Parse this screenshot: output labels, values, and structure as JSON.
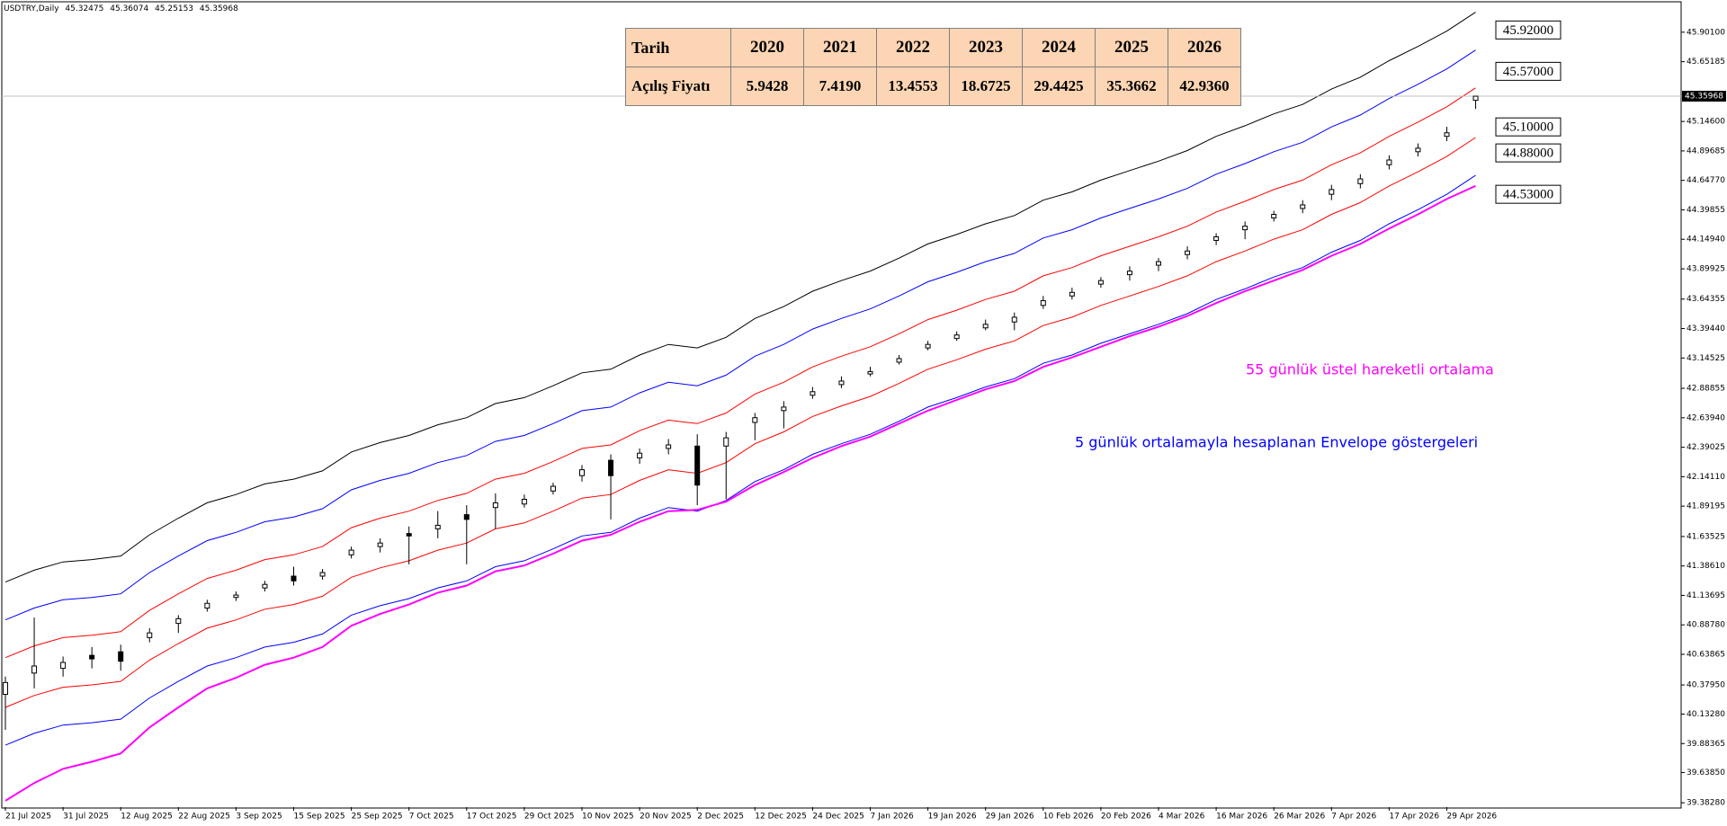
{
  "chart_data": {
    "type": "candlestick",
    "symbol": "USDTRY,Daily",
    "categories": [
      "21 Jul 2025",
      null,
      "31 Jul 2025",
      null,
      "12 Aug 2025",
      null,
      "22 Aug 2025",
      null,
      "3 Sep 2025",
      null,
      "15 Sep 2025",
      null,
      "25 Sep 2025",
      null,
      "7 Oct 2025",
      null,
      "17 Oct 2025",
      null,
      "29 Oct 2025",
      null,
      "10 Nov 2025",
      null,
      "20 Nov 2025",
      null,
      "2 Dec 2025",
      null,
      "12 Dec 2025",
      null,
      "24 Dec 2025",
      null,
      "7 Jan 2026",
      null,
      "19 Jan 2026",
      null,
      "29 Jan 2026",
      null,
      "10 Feb 2026",
      null,
      "20 Feb 2026",
      null,
      "4 Mar 2026",
      null,
      "16 Mar 2026",
      null,
      "26 Mar 2026",
      null,
      "7 Apr 2026",
      null,
      "17 Apr 2026",
      null,
      "29 Apr 2026",
      null
    ],
    "candles": [
      [
        40.3,
        40.45,
        40.0,
        40.4
      ],
      [
        40.48,
        40.95,
        40.35,
        40.54
      ],
      [
        40.52,
        40.62,
        40.45,
        40.57
      ],
      [
        40.63,
        40.7,
        40.52,
        40.6
      ],
      [
        40.66,
        40.72,
        40.5,
        40.58
      ],
      [
        40.78,
        40.86,
        40.74,
        40.82
      ],
      [
        40.9,
        40.97,
        40.82,
        40.94
      ],
      [
        41.03,
        41.1,
        41.0,
        41.07
      ],
      [
        41.12,
        41.17,
        41.09,
        41.14
      ],
      [
        41.2,
        41.26,
        41.17,
        41.23
      ],
      [
        41.3,
        41.38,
        41.22,
        41.26
      ],
      [
        41.3,
        41.36,
        41.27,
        41.33
      ],
      [
        41.48,
        41.55,
        41.45,
        41.52
      ],
      [
        41.55,
        41.62,
        41.5,
        41.58
      ],
      [
        41.66,
        41.72,
        41.4,
        41.64
      ],
      [
        41.7,
        41.85,
        41.62,
        41.73
      ],
      [
        41.82,
        41.9,
        41.4,
        41.78
      ],
      [
        41.88,
        42.0,
        41.7,
        41.92
      ],
      [
        41.91,
        41.99,
        41.88,
        41.95
      ],
      [
        42.02,
        42.09,
        41.99,
        42.06
      ],
      [
        42.15,
        42.24,
        42.1,
        42.2
      ],
      [
        42.28,
        42.33,
        41.78,
        42.15
      ],
      [
        42.3,
        42.38,
        42.25,
        42.34
      ],
      [
        42.38,
        42.46,
        42.33,
        42.41
      ],
      [
        42.4,
        42.5,
        41.9,
        42.07
      ],
      [
        42.4,
        42.52,
        41.95,
        42.47
      ],
      [
        42.6,
        42.68,
        42.45,
        42.64
      ],
      [
        42.7,
        42.78,
        42.55,
        42.73
      ],
      [
        42.83,
        42.9,
        42.8,
        42.86
      ],
      [
        42.92,
        42.99,
        42.89,
        42.95
      ],
      [
        43.01,
        43.07,
        42.99,
        43.03
      ],
      [
        43.11,
        43.17,
        43.09,
        43.14
      ],
      [
        43.23,
        43.29,
        43.21,
        43.26
      ],
      [
        43.31,
        43.37,
        43.29,
        43.34
      ],
      [
        43.4,
        43.47,
        43.38,
        43.43
      ],
      [
        43.45,
        43.53,
        43.38,
        43.49
      ],
      [
        43.59,
        43.67,
        43.56,
        43.63
      ],
      [
        43.67,
        43.74,
        43.64,
        43.7
      ],
      [
        43.77,
        43.83,
        43.74,
        43.8
      ],
      [
        43.85,
        43.92,
        43.8,
        43.88
      ],
      [
        43.93,
        43.99,
        43.88,
        43.96
      ],
      [
        44.02,
        44.09,
        43.98,
        44.05
      ],
      [
        44.14,
        44.2,
        44.1,
        44.17
      ],
      [
        44.23,
        44.3,
        44.15,
        44.26
      ],
      [
        44.33,
        44.39,
        44.3,
        44.36
      ],
      [
        44.41,
        44.48,
        44.37,
        44.44
      ],
      [
        44.53,
        44.61,
        44.48,
        44.57
      ],
      [
        44.62,
        44.7,
        44.58,
        44.66
      ],
      [
        44.78,
        44.86,
        44.74,
        44.82
      ],
      [
        44.89,
        44.96,
        44.85,
        44.92
      ],
      [
        45.02,
        45.1,
        44.98,
        45.05
      ],
      [
        45.32475,
        45.36074,
        45.25153,
        45.35968
      ]
    ],
    "series": [
      {
        "color": "#000000",
        "values": [
          41.25,
          41.35,
          41.42,
          41.44,
          41.47,
          41.65,
          41.79,
          41.92,
          41.99,
          42.08,
          42.12,
          42.19,
          42.35,
          42.43,
          42.49,
          42.58,
          42.64,
          42.76,
          42.81,
          42.91,
          43.02,
          43.05,
          43.17,
          43.26,
          43.23,
          43.32,
          43.48,
          43.58,
          43.71,
          43.8,
          43.88,
          43.99,
          44.11,
          44.19,
          44.28,
          44.35,
          44.48,
          44.55,
          44.65,
          44.73,
          44.81,
          44.9,
          45.02,
          45.11,
          45.21,
          45.29,
          45.42,
          45.52,
          45.66,
          45.78,
          45.91,
          46.07
        ]
      },
      {
        "color": "#0000ff",
        "values": [
          40.93,
          41.03,
          41.1,
          41.12,
          41.15,
          41.33,
          41.47,
          41.6,
          41.67,
          41.76,
          41.8,
          41.87,
          42.03,
          42.11,
          42.17,
          42.26,
          42.32,
          42.44,
          42.49,
          42.59,
          42.7,
          42.73,
          42.85,
          42.94,
          42.91,
          43.0,
          43.16,
          43.26,
          43.39,
          43.48,
          43.56,
          43.67,
          43.79,
          43.87,
          43.96,
          44.03,
          44.16,
          44.23,
          44.33,
          44.41,
          44.49,
          44.58,
          44.7,
          44.79,
          44.89,
          44.97,
          45.1,
          45.2,
          45.34,
          45.46,
          45.59,
          45.75
        ]
      },
      {
        "color": "#ff0000",
        "values": [
          40.61,
          40.71,
          40.78,
          40.8,
          40.83,
          41.01,
          41.15,
          41.28,
          41.35,
          41.44,
          41.48,
          41.55,
          41.71,
          41.79,
          41.85,
          41.94,
          42.0,
          42.12,
          42.17,
          42.27,
          42.38,
          42.41,
          42.53,
          42.62,
          42.59,
          42.68,
          42.84,
          42.94,
          43.07,
          43.16,
          43.24,
          43.35,
          43.47,
          43.55,
          43.64,
          43.71,
          43.84,
          43.91,
          44.01,
          44.09,
          44.17,
          44.26,
          44.38,
          44.47,
          44.57,
          44.65,
          44.78,
          44.88,
          45.02,
          45.14,
          45.27,
          45.43
        ]
      },
      {
        "color": "#ff0000",
        "values": [
          40.19,
          40.29,
          40.36,
          40.38,
          40.41,
          40.59,
          40.73,
          40.86,
          40.93,
          41.02,
          41.06,
          41.13,
          41.29,
          41.37,
          41.43,
          41.52,
          41.58,
          41.7,
          41.75,
          41.85,
          41.96,
          41.99,
          42.11,
          42.2,
          42.17,
          42.26,
          42.42,
          42.52,
          42.65,
          42.74,
          42.82,
          42.93,
          43.05,
          43.13,
          43.22,
          43.29,
          43.42,
          43.49,
          43.59,
          43.67,
          43.75,
          43.84,
          43.96,
          44.05,
          44.15,
          44.23,
          44.36,
          44.46,
          44.6,
          44.72,
          44.85,
          45.01
        ]
      },
      {
        "color": "#0000ff",
        "values": [
          39.87,
          39.97,
          40.04,
          40.06,
          40.09,
          40.27,
          40.41,
          40.54,
          40.61,
          40.7,
          40.74,
          40.81,
          40.97,
          41.05,
          41.11,
          41.2,
          41.26,
          41.38,
          41.43,
          41.53,
          41.64,
          41.67,
          41.79,
          41.88,
          41.85,
          41.94,
          42.1,
          42.2,
          42.33,
          42.42,
          42.5,
          42.61,
          42.73,
          42.81,
          42.9,
          42.97,
          43.1,
          43.17,
          43.27,
          43.35,
          43.43,
          43.52,
          43.64,
          43.73,
          43.83,
          43.91,
          44.04,
          44.14,
          44.28,
          44.4,
          44.53,
          44.69
        ]
      },
      {
        "color": "#ff00ff",
        "width": 2,
        "values": [
          39.4,
          39.55,
          39.67,
          39.73,
          39.8,
          40.02,
          40.19,
          40.35,
          40.44,
          40.55,
          40.61,
          40.7,
          40.88,
          40.98,
          41.06,
          41.16,
          41.22,
          41.34,
          41.39,
          41.49,
          41.6,
          41.65,
          41.76,
          41.85,
          41.86,
          41.93,
          42.07,
          42.18,
          42.3,
          42.4,
          42.48,
          42.59,
          42.7,
          42.79,
          42.88,
          42.95,
          43.07,
          43.15,
          43.24,
          43.33,
          43.41,
          43.5,
          43.61,
          43.71,
          43.8,
          43.89,
          44.01,
          44.11,
          44.24,
          44.36,
          44.49,
          44.6
        ]
      }
    ],
    "ylim": [
      39.346,
      46.143
    ],
    "yticks": [
      {
        "value": 45.901,
        "label": "45.90100"
      },
      {
        "value": 45.65185,
        "label": "45.65185"
      },
      {
        "value": 45.146,
        "label": "45.14600"
      },
      {
        "value": 44.89685,
        "label": "44.89685"
      },
      {
        "value": 44.6477,
        "label": "44.64770"
      },
      {
        "value": 44.39855,
        "label": "44.39855"
      },
      {
        "value": 44.1494,
        "label": "44.14940"
      },
      {
        "value": 43.89925,
        "label": "43.89925"
      },
      {
        "value": 43.64355,
        "label": "43.64355"
      },
      {
        "value": 43.3944,
        "label": "43.39440"
      },
      {
        "value": 43.14525,
        "label": "43.14525"
      },
      {
        "value": 42.88855,
        "label": "42.88855"
      },
      {
        "value": 42.6394,
        "label": "42.63940"
      },
      {
        "value": 42.39025,
        "label": "42.39025"
      },
      {
        "value": 42.1411,
        "label": "42.14110"
      },
      {
        "value": 41.89195,
        "label": "41.89195"
      },
      {
        "value": 41.63525,
        "label": "41.63525"
      },
      {
        "value": 41.3861,
        "label": "41.38610"
      },
      {
        "value": 41.13695,
        "label": "41.13695"
      },
      {
        "value": 40.8878,
        "label": "40.88780"
      },
      {
        "value": 40.63865,
        "label": "40.63865"
      },
      {
        "value": 40.3795,
        "label": "40.37950"
      },
      {
        "value": 40.1328,
        "label": "40.13280"
      },
      {
        "value": 39.88365,
        "label": "39.88365"
      },
      {
        "value": 39.6385,
        "label": "39.63850"
      },
      {
        "value": 39.3828,
        "label": "39.38280"
      }
    ],
    "levels": [
      {
        "value": 45.92,
        "label": "45.92000"
      },
      {
        "value": 45.57,
        "label": "45.57000"
      },
      {
        "value": 45.1,
        "label": "45.10000"
      },
      {
        "value": 44.88,
        "label": "44.88000"
      },
      {
        "value": 44.53,
        "label": "44.53000"
      }
    ],
    "annotations": [
      {
        "text": "55 günlük üstel hareketli ortalama",
        "color": "#ff00ff"
      },
      {
        "text": "5 günlük ortalamayla hesaplanan Envelope göstergeleri",
        "color": "#0000ff"
      }
    ]
  },
  "table": {
    "header": [
      "Tarih",
      "2020",
      "2021",
      "2022",
      "2023",
      "2024",
      "2025",
      "2026"
    ],
    "rows": [
      [
        "Açılış Fiyatı",
        "5.9428",
        "7.4190",
        "13.4553",
        "18.6725",
        "29.4425",
        "35.3662",
        "42.9360"
      ]
    ]
  }
}
